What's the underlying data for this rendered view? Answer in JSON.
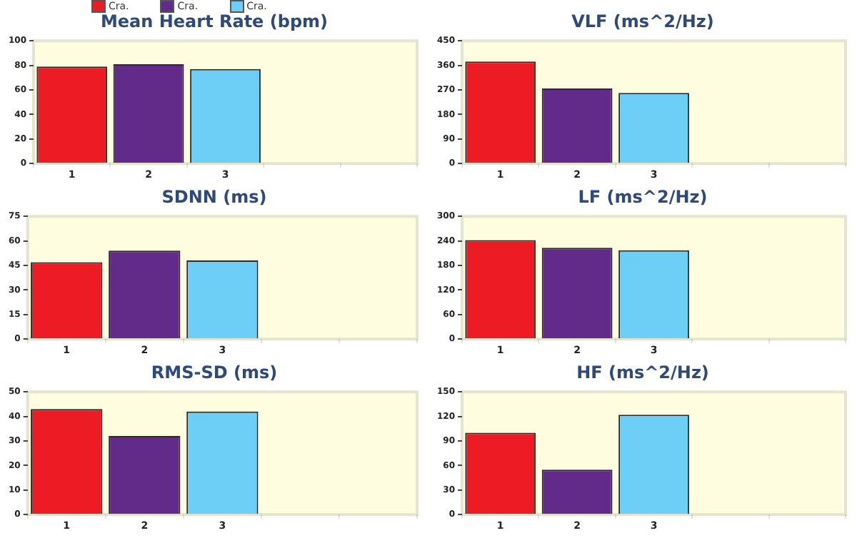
{
  "chart_data": [
    {
      "type": "bar",
      "title": "Mean Heart Rate (bpm)",
      "categories": [
        "1",
        "2",
        "3",
        null,
        null
      ],
      "series": [
        {
          "name": "Cra.",
          "color": "#ed1c24",
          "values": [
            79,
            null,
            null,
            null,
            null
          ]
        },
        {
          "name": "Cra.",
          "color": "#622b8a",
          "values": [
            null,
            81,
            null,
            null,
            null
          ]
        },
        {
          "name": "Cra.",
          "color": "#6dcff6",
          "values": [
            null,
            null,
            77,
            null,
            null
          ]
        }
      ],
      "ylim": [
        0,
        100
      ],
      "yticks": [
        0,
        20,
        40,
        60,
        80,
        100
      ],
      "grid": false,
      "legend": "top left"
    },
    {
      "type": "bar",
      "title": "VLF (ms^2/Hz)",
      "categories": [
        "1",
        "2",
        "3",
        null,
        null
      ],
      "series": [
        {
          "color": "#ed1c24",
          "values": [
            374,
            null,
            null,
            null,
            null
          ]
        },
        {
          "color": "#622b8a",
          "values": [
            null,
            275,
            null,
            null,
            null
          ]
        },
        {
          "color": "#6dcff6",
          "values": [
            null,
            null,
            259,
            null,
            null
          ]
        }
      ],
      "ylim": [
        0,
        450
      ],
      "yticks": [
        0,
        90,
        180,
        270,
        360,
        450
      ],
      "grid": false,
      "legend": false
    },
    {
      "type": "bar",
      "title": "SDNN (ms)",
      "categories": [
        "1",
        "2",
        "3",
        null,
        null
      ],
      "series": [
        {
          "color": "#ed1c24",
          "values": [
            47,
            null,
            null,
            null,
            null
          ]
        },
        {
          "color": "#622b8a",
          "values": [
            null,
            54,
            null,
            null,
            null
          ]
        },
        {
          "color": "#6dcff6",
          "values": [
            null,
            null,
            48,
            null,
            null
          ]
        }
      ],
      "ylim": [
        0,
        75
      ],
      "yticks": [
        0,
        15,
        30,
        45,
        60,
        75
      ],
      "grid": false,
      "legend": false
    },
    {
      "type": "bar",
      "title": "LF (ms^2/Hz)",
      "categories": [
        "1",
        "2",
        "3",
        null,
        null
      ],
      "series": [
        {
          "color": "#ed1c24",
          "values": [
            242,
            null,
            null,
            null,
            null
          ]
        },
        {
          "color": "#622b8a",
          "values": [
            null,
            223,
            null,
            null,
            null
          ]
        },
        {
          "color": "#6dcff6",
          "values": [
            null,
            null,
            217,
            null,
            null
          ]
        }
      ],
      "ylim": [
        0,
        300
      ],
      "yticks": [
        0,
        60,
        120,
        180,
        240,
        300
      ],
      "grid": false,
      "legend": false
    },
    {
      "type": "bar",
      "title": "RMS-SD (ms)",
      "categories": [
        "1",
        "2",
        "3",
        null,
        null
      ],
      "series": [
        {
          "color": "#ed1c24",
          "values": [
            43,
            null,
            null,
            null,
            null
          ]
        },
        {
          "color": "#622b8a",
          "values": [
            null,
            32,
            null,
            null,
            null
          ]
        },
        {
          "color": "#6dcff6",
          "values": [
            null,
            null,
            42,
            null,
            null
          ]
        }
      ],
      "ylim": [
        0,
        50
      ],
      "yticks": [
        0,
        10,
        20,
        30,
        40,
        50
      ],
      "grid": false,
      "legend": false
    },
    {
      "type": "bar",
      "title": "HF (ms^2/Hz)",
      "categories": [
        "1",
        "2",
        "3",
        null,
        null
      ],
      "series": [
        {
          "color": "#ed1c24",
          "values": [
            100,
            null,
            null,
            null,
            null
          ]
        },
        {
          "color": "#622b8a",
          "values": [
            null,
            55,
            null,
            null,
            null
          ]
        },
        {
          "color": "#6dcff6",
          "values": [
            null,
            null,
            122,
            null,
            null
          ]
        }
      ],
      "ylim": [
        0,
        150
      ],
      "yticks": [
        0,
        30,
        60,
        90,
        120,
        150
      ],
      "grid": false,
      "legend": false
    }
  ]
}
